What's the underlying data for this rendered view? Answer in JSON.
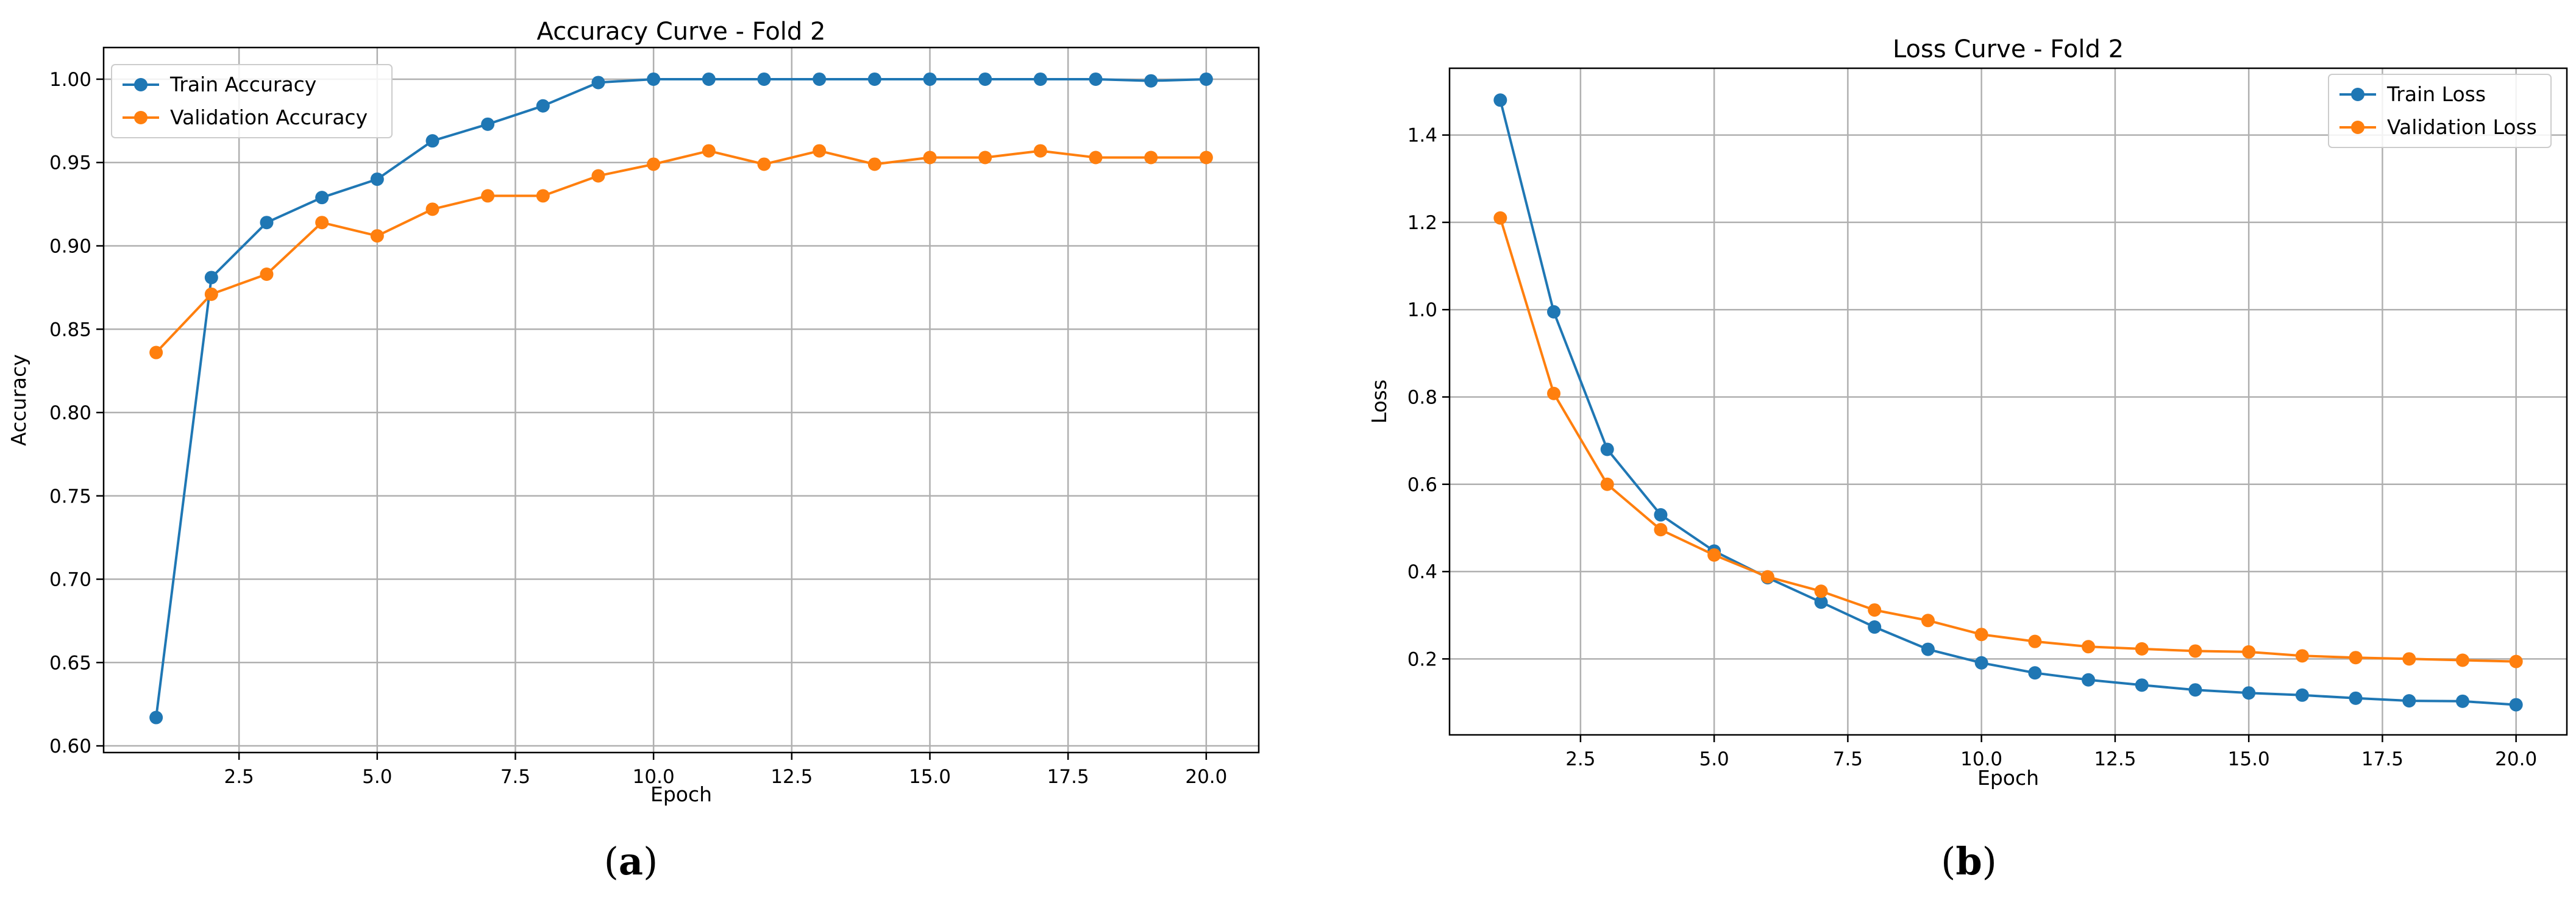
{
  "chart_data": [
    {
      "type": "line",
      "title": "Accuracy Curve - Fold 2",
      "xlabel": "Epoch",
      "ylabel": "Accuracy",
      "xlim": [
        0.05,
        20.95
      ],
      "ylim": [
        0.596,
        1.019
      ],
      "xticks": [
        2.5,
        5.0,
        7.5,
        10.0,
        12.5,
        15.0,
        17.5,
        20.0
      ],
      "xtick_labels": [
        "2.5",
        "5.0",
        "7.5",
        "10.0",
        "12.5",
        "15.0",
        "17.5",
        "20.0"
      ],
      "yticks": [
        0.6,
        0.65,
        0.7,
        0.75,
        0.8,
        0.85,
        0.9,
        0.95,
        1.0
      ],
      "ytick_labels": [
        "0.60",
        "0.65",
        "0.70",
        "0.75",
        "0.80",
        "0.85",
        "0.90",
        "0.95",
        "1.00"
      ],
      "grid": true,
      "legend_position": "top-left",
      "caption": "a",
      "x": [
        1,
        2,
        3,
        4,
        5,
        6,
        7,
        8,
        9,
        10,
        11,
        12,
        13,
        14,
        15,
        16,
        17,
        18,
        19,
        20
      ],
      "series": [
        {
          "name": "Train Accuracy",
          "color": "#1f77b4",
          "values": [
            0.617,
            0.881,
            0.914,
            0.929,
            0.94,
            0.963,
            0.973,
            0.984,
            0.998,
            1.0,
            1.0,
            1.0,
            1.0,
            1.0,
            1.0,
            1.0,
            1.0,
            1.0,
            0.999,
            1.0
          ]
        },
        {
          "name": "Validation Accuracy",
          "color": "#ff7f0e",
          "values": [
            0.836,
            0.871,
            0.883,
            0.914,
            0.906,
            0.922,
            0.93,
            0.93,
            0.942,
            0.949,
            0.957,
            0.949,
            0.957,
            0.949,
            0.953,
            0.953,
            0.957,
            0.953,
            0.953,
            0.953
          ]
        }
      ]
    },
    {
      "type": "line",
      "title": "Loss Curve - Fold 2",
      "xlabel": "Epoch",
      "ylabel": "Loss",
      "xlim": [
        0.05,
        20.95
      ],
      "ylim": [
        0.026,
        1.553
      ],
      "xticks": [
        2.5,
        5.0,
        7.5,
        10.0,
        12.5,
        15.0,
        17.5,
        20.0
      ],
      "xtick_labels": [
        "2.5",
        "5.0",
        "7.5",
        "10.0",
        "12.5",
        "15.0",
        "17.5",
        "20.0"
      ],
      "yticks": [
        0.2,
        0.4,
        0.6,
        0.8,
        1.0,
        1.2,
        1.4
      ],
      "ytick_labels": [
        "0.2",
        "0.4",
        "0.6",
        "0.8",
        "1.0",
        "1.2",
        "1.4"
      ],
      "grid": true,
      "legend_position": "top-right",
      "caption": "b",
      "x": [
        1,
        2,
        3,
        4,
        5,
        6,
        7,
        8,
        9,
        10,
        11,
        12,
        13,
        14,
        15,
        16,
        17,
        18,
        19,
        20
      ],
      "series": [
        {
          "name": "Train Loss",
          "color": "#1f77b4",
          "values": [
            1.48,
            0.995,
            0.68,
            0.53,
            0.447,
            0.386,
            0.33,
            0.273,
            0.222,
            0.191,
            0.168,
            0.152,
            0.14,
            0.129,
            0.122,
            0.117,
            0.11,
            0.104,
            0.103,
            0.095
          ]
        },
        {
          "name": "Validation Loss",
          "color": "#ff7f0e",
          "values": [
            1.21,
            0.808,
            0.6,
            0.496,
            0.438,
            0.388,
            0.355,
            0.312,
            0.288,
            0.256,
            0.24,
            0.228,
            0.223,
            0.218,
            0.216,
            0.207,
            0.203,
            0.2,
            0.197,
            0.194
          ]
        }
      ]
    }
  ]
}
